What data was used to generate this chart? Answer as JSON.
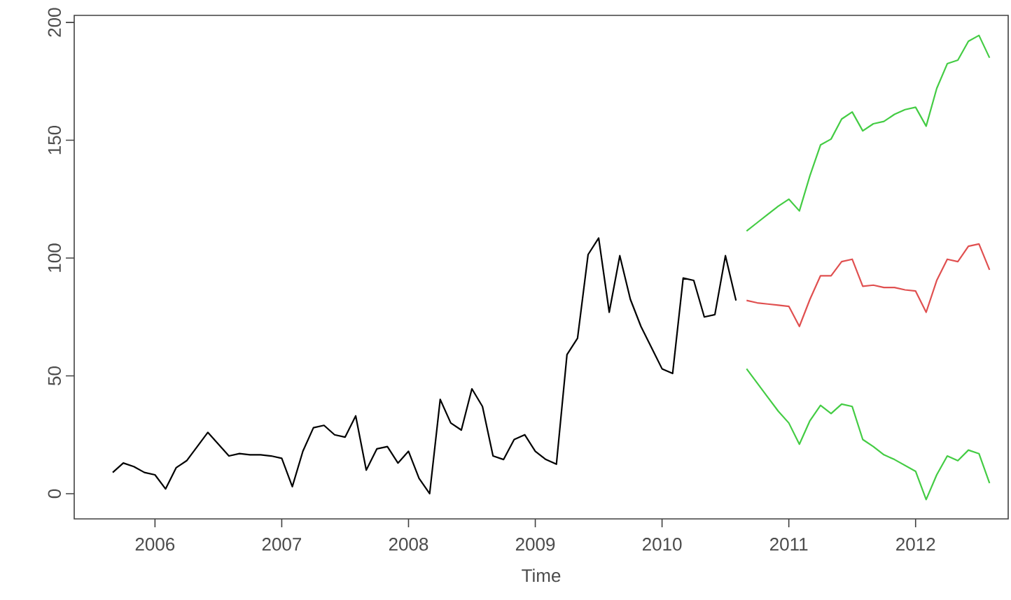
{
  "chart_data": {
    "type": "line",
    "xlabel": "Time",
    "xlim": [
      "2005-05-12",
      "2012-09-24"
    ],
    "xticks": [
      "2006",
      "2007",
      "2008",
      "2009",
      "2010",
      "2011",
      "2012"
    ],
    "ylim": [
      -10.7,
      203
    ],
    "yticks": [
      0,
      50,
      100,
      150,
      200
    ],
    "series": [
      {
        "color": "#000000",
        "x": [
          "2005-09",
          "2005-10",
          "2005-11",
          "2005-12",
          "2006-01",
          "2006-02",
          "2006-03",
          "2006-04",
          "2006-05",
          "2006-06",
          "2006-07",
          "2006-08",
          "2006-09",
          "2006-10",
          "2006-11",
          "2006-12",
          "2007-01",
          "2007-02",
          "2007-03",
          "2007-04",
          "2007-05",
          "2007-06",
          "2007-07",
          "2007-08",
          "2007-09",
          "2007-10",
          "2007-11",
          "2007-12",
          "2008-01",
          "2008-02",
          "2008-03",
          "2008-04",
          "2008-05",
          "2008-06",
          "2008-07",
          "2008-08",
          "2008-09",
          "2008-10",
          "2008-11",
          "2008-12",
          "2009-01",
          "2009-02",
          "2009-03",
          "2009-04",
          "2009-05",
          "2009-06",
          "2009-07",
          "2009-08",
          "2009-09",
          "2009-10",
          "2009-11",
          "2009-12",
          "2010-01",
          "2010-02",
          "2010-03",
          "2010-04",
          "2010-05",
          "2010-06",
          "2010-07",
          "2010-08"
        ],
        "values": [
          9,
          13,
          11.5,
          9,
          8,
          2,
          11,
          14,
          20,
          26,
          21,
          16,
          17,
          16.5,
          16.5,
          16,
          15,
          3,
          18,
          28,
          29,
          25,
          24,
          33,
          10,
          19,
          20,
          13,
          18,
          6.5,
          0,
          40,
          30,
          27,
          44.5,
          37,
          16,
          14.5,
          23,
          25,
          18,
          14.5,
          12.5,
          59,
          66,
          101.5,
          108.5,
          77,
          101,
          82.5,
          71,
          62,
          53,
          51,
          91.5,
          90.5,
          75,
          76,
          101,
          82
        ]
      },
      {
        "color": "#e05050",
        "x": [
          "2010-09",
          "2010-10",
          "2010-11",
          "2010-12",
          "2011-01",
          "2011-02",
          "2011-03",
          "2011-04",
          "2011-05",
          "2011-06",
          "2011-07",
          "2011-08",
          "2011-09",
          "2011-10",
          "2011-11",
          "2011-12",
          "2012-01",
          "2012-02",
          "2012-03",
          "2012-04",
          "2012-05",
          "2012-06",
          "2012-07",
          "2012-08"
        ],
        "values": [
          82,
          81,
          80.5,
          80,
          79.5,
          71,
          82.5,
          92.5,
          92.5,
          98.5,
          99.5,
          88,
          88.5,
          87.5,
          87.5,
          86.5,
          86,
          77,
          90.5,
          99.5,
          98.5,
          105,
          106,
          95
        ]
      },
      {
        "color": "#44cc44",
        "x": [
          "2010-09",
          "2010-10",
          "2010-11",
          "2010-12",
          "2011-01",
          "2011-02",
          "2011-03",
          "2011-04",
          "2011-05",
          "2011-06",
          "2011-07",
          "2011-08",
          "2011-09",
          "2011-10",
          "2011-11",
          "2011-12",
          "2012-01",
          "2012-02",
          "2012-03",
          "2012-04",
          "2012-05",
          "2012-06",
          "2012-07",
          "2012-08"
        ],
        "values": [
          111.5,
          115,
          118.5,
          122,
          125,
          120,
          135,
          148,
          150.5,
          159,
          162,
          154,
          157,
          158,
          161,
          163,
          164,
          156,
          172,
          182.5,
          184,
          192,
          194.5,
          185
        ]
      },
      {
        "color": "#44cc44",
        "x": [
          "2010-09",
          "2010-10",
          "2010-11",
          "2010-12",
          "2011-01",
          "2011-02",
          "2011-03",
          "2011-04",
          "2011-05",
          "2011-06",
          "2011-07",
          "2011-08",
          "2011-09",
          "2011-10",
          "2011-11",
          "2011-12",
          "2012-01",
          "2012-02",
          "2012-03",
          "2012-04",
          "2012-05",
          "2012-06",
          "2012-07",
          "2012-08"
        ],
        "values": [
          53,
          47,
          41,
          35,
          30,
          21,
          31,
          37.5,
          34,
          38,
          37,
          23,
          20,
          16.5,
          14.5,
          12,
          9.5,
          -2.5,
          8,
          16,
          14,
          18.5,
          17,
          4.5
        ]
      }
    ]
  }
}
